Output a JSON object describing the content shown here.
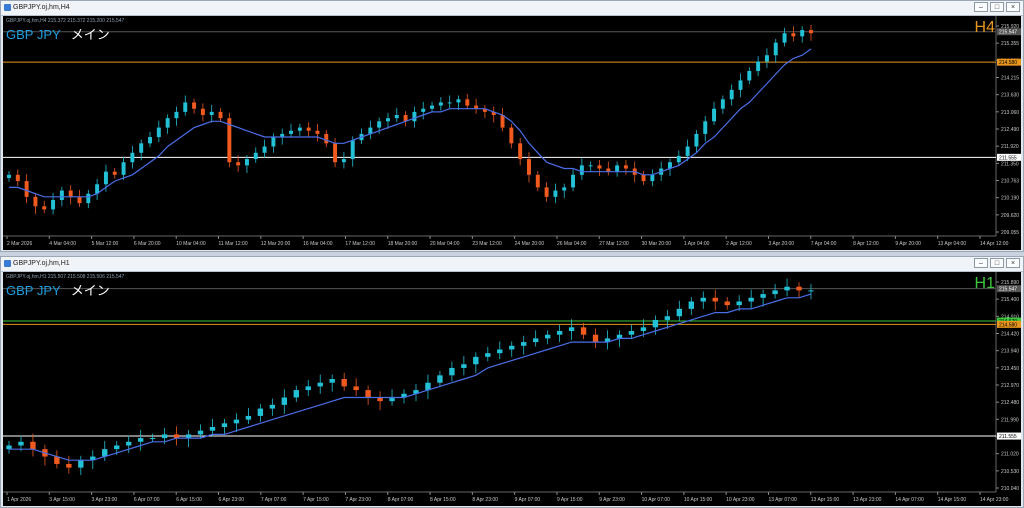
{
  "windows": [
    {
      "title": "GBPJPY.oj,hm,H4",
      "info": "GBPJPY.oj,hm,H4  215.372 215.372 215.200 215.547",
      "symbol": "GBP JPY",
      "subtitle": "メイン",
      "timeframe": "H4",
      "tf_color": "#e8951e",
      "price_labels": [
        "215.920",
        "215.355",
        "214.780",
        "214.215",
        "213.630",
        "213.060",
        "212.490",
        "211.920",
        "211.350",
        "210.763",
        "210.190",
        "209.620",
        "209.055"
      ],
      "price_range": [
        209.055,
        215.92
      ],
      "lines": [
        {
          "price": 215.547,
          "color": "#555555",
          "label": "215.547"
        },
        {
          "price": 214.58,
          "color": "#e8951e",
          "label": "214.580"
        },
        {
          "price": 211.555,
          "color": "#ffffff",
          "label": "211.555"
        }
      ],
      "time_labels": [
        "2 Mar 2026",
        "4 Mar 04:00",
        "5 Mar 12:00",
        "6 Mar 20:00",
        "10 Mar 04:00",
        "11 Mar 12:00",
        "12 Mar 20:00",
        "16 Mar 04:00",
        "17 Mar 12:00",
        "18 Mar 20:00",
        "20 Mar 04:00",
        "23 Mar 12:00",
        "24 Mar 20:00",
        "26 Mar 04:00",
        "27 Mar 12:00",
        "30 Mar 20:00",
        "1 Apr 04:00",
        "2 Apr 12:00",
        "3 Apr 20:00",
        "7 Apr 04:00",
        "8 Apr 12:00",
        "9 Apr 20:00",
        "13 Apr 04:00",
        "14 Apr 12:00"
      ],
      "closes": [
        211.0,
        210.8,
        210.3,
        210.0,
        209.9,
        210.2,
        210.5,
        210.3,
        210.1,
        210.4,
        210.7,
        211.1,
        211.0,
        211.4,
        211.7,
        212.0,
        212.2,
        212.5,
        212.8,
        213.0,
        213.3,
        213.1,
        212.9,
        213.0,
        212.8,
        211.4,
        211.3,
        211.5,
        211.7,
        211.9,
        212.2,
        212.3,
        212.4,
        212.5,
        212.4,
        212.3,
        212.0,
        211.4,
        211.5,
        212.1,
        212.3,
        212.5,
        212.7,
        212.8,
        212.9,
        212.7,
        213.0,
        213.1,
        213.2,
        213.3,
        213.3,
        213.4,
        213.2,
        213.1,
        213.0,
        212.9,
        212.5,
        212.0,
        211.5,
        211.0,
        210.6,
        210.3,
        210.5,
        210.6,
        211.0,
        211.3,
        211.3,
        211.2,
        211.1,
        211.3,
        211.2,
        211.0,
        210.8,
        211.0,
        211.2,
        211.4,
        211.6,
        211.9,
        212.3,
        212.7,
        213.1,
        213.4,
        213.7,
        214.0,
        214.3,
        214.6,
        214.8,
        215.2,
        215.5,
        215.4,
        215.6,
        215.5
      ],
      "ma": [
        210.6,
        210.6,
        210.5,
        210.4,
        210.3,
        210.3,
        210.3,
        210.3,
        210.3,
        210.3,
        210.4,
        210.6,
        210.8,
        210.9,
        211.0,
        211.2,
        211.4,
        211.6,
        211.9,
        212.1,
        212.3,
        212.5,
        212.6,
        212.7,
        212.7,
        212.6,
        212.5,
        212.4,
        212.3,
        212.2,
        212.2,
        212.2,
        212.2,
        212.2,
        212.2,
        212.2,
        212.1,
        212.0,
        212.0,
        212.1,
        212.2,
        212.3,
        212.4,
        212.5,
        212.6,
        212.7,
        212.8,
        212.9,
        213.0,
        213.0,
        213.1,
        213.1,
        213.1,
        213.1,
        213.1,
        213.0,
        212.9,
        212.7,
        212.4,
        212.0,
        211.7,
        211.4,
        211.3,
        211.2,
        211.2,
        211.1,
        211.1,
        211.1,
        211.1,
        211.1,
        211.1,
        211.1,
        211.0,
        211.0,
        211.1,
        211.2,
        211.3,
        211.5,
        211.7,
        212.0,
        212.2,
        212.5,
        212.8,
        213.1,
        213.3,
        213.6,
        213.9,
        214.2,
        214.5,
        214.7,
        214.8,
        215.0
      ]
    },
    {
      "title": "GBPJPY.oj,hm,H1",
      "info": "GBPJPY.oj,hm,H1  215.507 215.508 215.506 215.547",
      "symbol": "GBP JPY",
      "subtitle": "メイン",
      "timeframe": "H1",
      "tf_color": "#3cc83c",
      "price_labels": [
        "215.890",
        "215.400",
        "214.910",
        "214.420",
        "213.940",
        "213.450",
        "212.970",
        "212.480",
        "211.990",
        "211.510",
        "211.020",
        "210.530",
        "210.040"
      ],
      "price_range": [
        210.04,
        215.89
      ],
      "lines": [
        {
          "price": 215.547,
          "color": "#555555",
          "label": "215.547"
        },
        {
          "price": 214.67,
          "color": "#3cc83c",
          "label": "214.670"
        },
        {
          "price": 214.58,
          "color": "#e8951e",
          "label": "214.580"
        },
        {
          "price": 211.555,
          "color": "#ffffff",
          "label": "211.555"
        }
      ],
      "time_labels": [
        "1 Apr 2026",
        "3 Apr 15:00",
        "3 Apr 23:00",
        "6 Apr 07:00",
        "6 Apr 15:00",
        "6 Apr 23:00",
        "7 Apr 07:00",
        "7 Apr 15:00",
        "7 Apr 23:00",
        "8 Apr 07:00",
        "8 Apr 15:00",
        "8 Apr 23:00",
        "9 Apr 07:00",
        "9 Apr 15:00",
        "9 Apr 23:00",
        "10 Apr 07:00",
        "10 Apr 15:00",
        "10 Apr 23:00",
        "13 Apr 07:00",
        "13 Apr 15:00",
        "13 Apr 23:00",
        "14 Apr 07:00",
        "14 Apr 15:00",
        "14 Apr 23:00"
      ],
      "closes": [
        211.3,
        211.4,
        211.2,
        211.0,
        210.8,
        210.7,
        210.9,
        211.0,
        211.2,
        211.3,
        211.4,
        211.5,
        211.5,
        211.6,
        211.5,
        211.6,
        211.7,
        211.8,
        211.9,
        212.0,
        212.1,
        212.3,
        212.4,
        212.6,
        212.8,
        212.9,
        213.0,
        213.1,
        212.9,
        212.8,
        212.6,
        212.5,
        212.6,
        212.7,
        212.8,
        213.0,
        213.2,
        213.4,
        213.5,
        213.7,
        213.8,
        213.9,
        214.0,
        214.1,
        214.2,
        214.3,
        214.4,
        214.5,
        214.3,
        214.1,
        214.2,
        214.3,
        214.4,
        214.5,
        214.7,
        214.8,
        215.0,
        215.2,
        215.3,
        215.2,
        215.1,
        215.2,
        215.3,
        215.4,
        215.5,
        215.6,
        215.5,
        215.5
      ],
      "ma": [
        211.2,
        211.2,
        211.2,
        211.1,
        211.0,
        210.9,
        210.9,
        210.9,
        211.0,
        211.1,
        211.2,
        211.3,
        211.4,
        211.4,
        211.5,
        211.5,
        211.5,
        211.6,
        211.6,
        211.7,
        211.8,
        211.9,
        212.0,
        212.1,
        212.2,
        212.3,
        212.4,
        212.5,
        212.6,
        212.6,
        212.6,
        212.6,
        212.6,
        212.6,
        212.7,
        212.8,
        212.9,
        213.0,
        213.1,
        213.2,
        213.4,
        213.5,
        213.6,
        213.7,
        213.8,
        213.9,
        214.0,
        214.1,
        214.1,
        214.1,
        214.1,
        214.2,
        214.2,
        214.3,
        214.4,
        214.5,
        214.6,
        214.7,
        214.8,
        214.9,
        214.9,
        215.0,
        215.0,
        215.1,
        215.2,
        215.3,
        215.3,
        215.4
      ]
    }
  ]
}
